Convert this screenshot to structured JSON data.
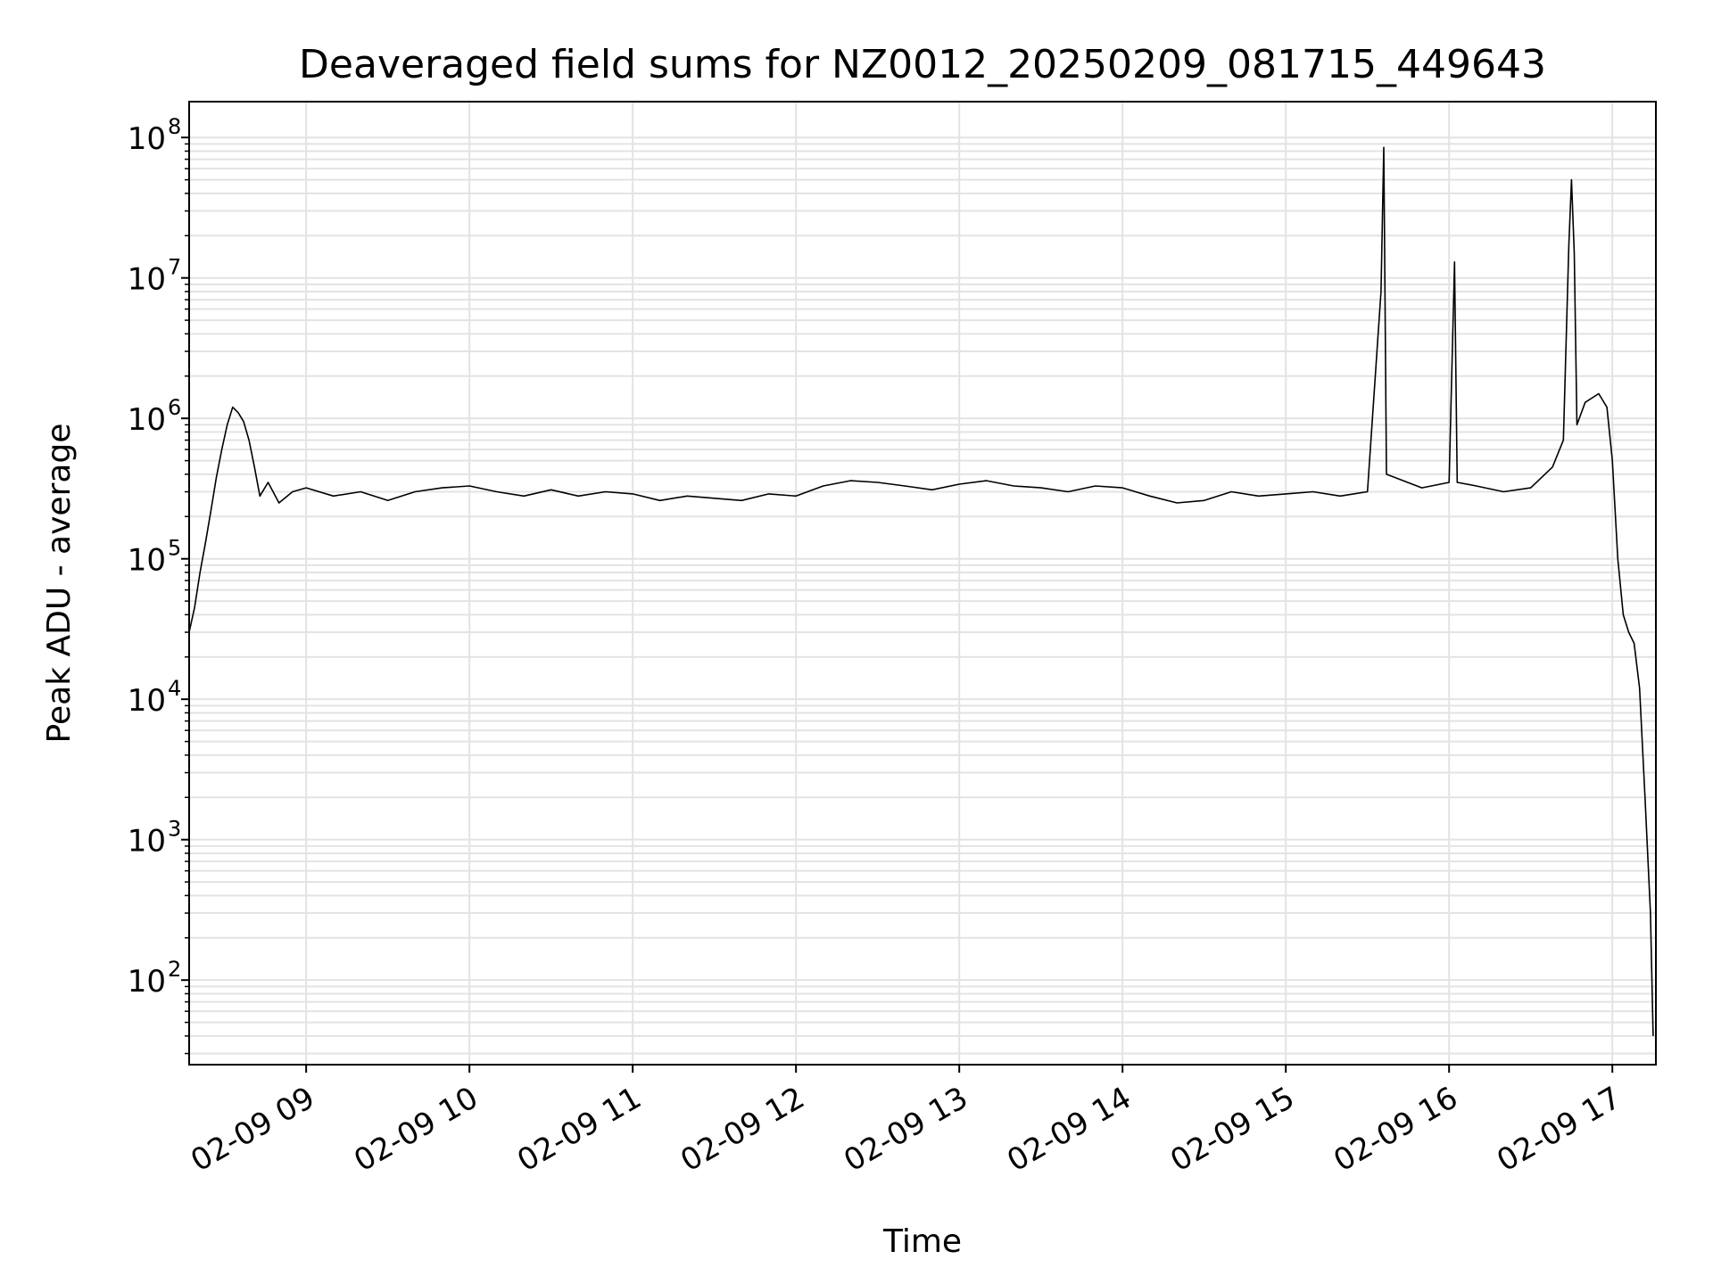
{
  "chart_data": {
    "type": "line",
    "title": "Deaveraged field sums for NZ0012_20250209_081715_449643",
    "xlabel": "Time",
    "ylabel": "Peak ADU - average",
    "yscale": "log",
    "grid": true,
    "x_date": "2025-02-09",
    "xlim": [
      "08:17",
      "17:16"
    ],
    "ylim": [
      25,
      180000000
    ],
    "x_ticks": [
      {
        "time": "09:00",
        "label": "02-09 09"
      },
      {
        "time": "10:00",
        "label": "02-09 10"
      },
      {
        "time": "11:00",
        "label": "02-09 11"
      },
      {
        "time": "12:00",
        "label": "02-09 12"
      },
      {
        "time": "13:00",
        "label": "02-09 13"
      },
      {
        "time": "14:00",
        "label": "02-09 14"
      },
      {
        "time": "15:00",
        "label": "02-09 15"
      },
      {
        "time": "16:00",
        "label": "02-09 16"
      },
      {
        "time": "17:00",
        "label": "02-09 17"
      }
    ],
    "y_ticks": [
      {
        "value": 100,
        "base": "10",
        "exp": "2"
      },
      {
        "value": 1000,
        "base": "10",
        "exp": "3"
      },
      {
        "value": 10000,
        "base": "10",
        "exp": "4"
      },
      {
        "value": 100000,
        "base": "10",
        "exp": "5"
      },
      {
        "value": 1000000,
        "base": "10",
        "exp": "6"
      },
      {
        "value": 10000000,
        "base": "10",
        "exp": "7"
      },
      {
        "value": 100000000,
        "base": "10",
        "exp": "8"
      }
    ],
    "series": [
      {
        "color": "#000000",
        "points": [
          [
            "08:17",
            30000
          ],
          [
            "08:19",
            45000
          ],
          [
            "08:21",
            80000
          ],
          [
            "08:23",
            130000
          ],
          [
            "08:25",
            220000
          ],
          [
            "08:27",
            380000
          ],
          [
            "08:29",
            600000
          ],
          [
            "08:31",
            900000
          ],
          [
            "08:33",
            1200000
          ],
          [
            "08:35",
            1100000
          ],
          [
            "08:37",
            950000
          ],
          [
            "08:39",
            700000
          ],
          [
            "08:41",
            450000
          ],
          [
            "08:43",
            280000
          ],
          [
            "08:46",
            350000
          ],
          [
            "08:50",
            250000
          ],
          [
            "08:55",
            300000
          ],
          [
            "09:00",
            320000
          ],
          [
            "09:10",
            280000
          ],
          [
            "09:20",
            300000
          ],
          [
            "09:30",
            260000
          ],
          [
            "09:40",
            300000
          ],
          [
            "09:50",
            320000
          ],
          [
            "10:00",
            330000
          ],
          [
            "10:10",
            300000
          ],
          [
            "10:20",
            280000
          ],
          [
            "10:30",
            310000
          ],
          [
            "10:40",
            280000
          ],
          [
            "10:50",
            300000
          ],
          [
            "11:00",
            290000
          ],
          [
            "11:10",
            260000
          ],
          [
            "11:20",
            280000
          ],
          [
            "11:30",
            270000
          ],
          [
            "11:40",
            260000
          ],
          [
            "11:50",
            290000
          ],
          [
            "12:00",
            280000
          ],
          [
            "12:10",
            330000
          ],
          [
            "12:20",
            360000
          ],
          [
            "12:30",
            350000
          ],
          [
            "12:40",
            330000
          ],
          [
            "12:50",
            310000
          ],
          [
            "13:00",
            340000
          ],
          [
            "13:10",
            360000
          ],
          [
            "13:20",
            330000
          ],
          [
            "13:30",
            320000
          ],
          [
            "13:40",
            300000
          ],
          [
            "13:50",
            330000
          ],
          [
            "14:00",
            320000
          ],
          [
            "14:10",
            280000
          ],
          [
            "14:20",
            250000
          ],
          [
            "14:30",
            260000
          ],
          [
            "14:40",
            300000
          ],
          [
            "14:50",
            280000
          ],
          [
            "15:00",
            290000
          ],
          [
            "15:10",
            300000
          ],
          [
            "15:20",
            280000
          ],
          [
            "15:30",
            300000
          ],
          [
            "15:35",
            8000000
          ],
          [
            "15:36",
            85000000
          ],
          [
            "15:37",
            400000
          ],
          [
            "15:50",
            320000
          ],
          [
            "16:00",
            350000
          ],
          [
            "16:02",
            13000000
          ],
          [
            "16:03",
            350000
          ],
          [
            "16:10",
            330000
          ],
          [
            "16:20",
            300000
          ],
          [
            "16:30",
            320000
          ],
          [
            "16:38",
            450000
          ],
          [
            "16:42",
            700000
          ],
          [
            "16:44",
            17000000
          ],
          [
            "16:45",
            50000000
          ],
          [
            "16:46",
            15000000
          ],
          [
            "16:47",
            900000
          ],
          [
            "16:50",
            1300000
          ],
          [
            "16:55",
            1500000
          ],
          [
            "16:58",
            1200000
          ],
          [
            "17:00",
            500000
          ],
          [
            "17:02",
            100000
          ],
          [
            "17:04",
            40000
          ],
          [
            "17:06",
            30000
          ],
          [
            "17:08",
            25000
          ],
          [
            "17:10",
            12000
          ],
          [
            "17:12",
            2000
          ],
          [
            "17:14",
            300
          ],
          [
            "17:15",
            40
          ]
        ]
      }
    ]
  }
}
